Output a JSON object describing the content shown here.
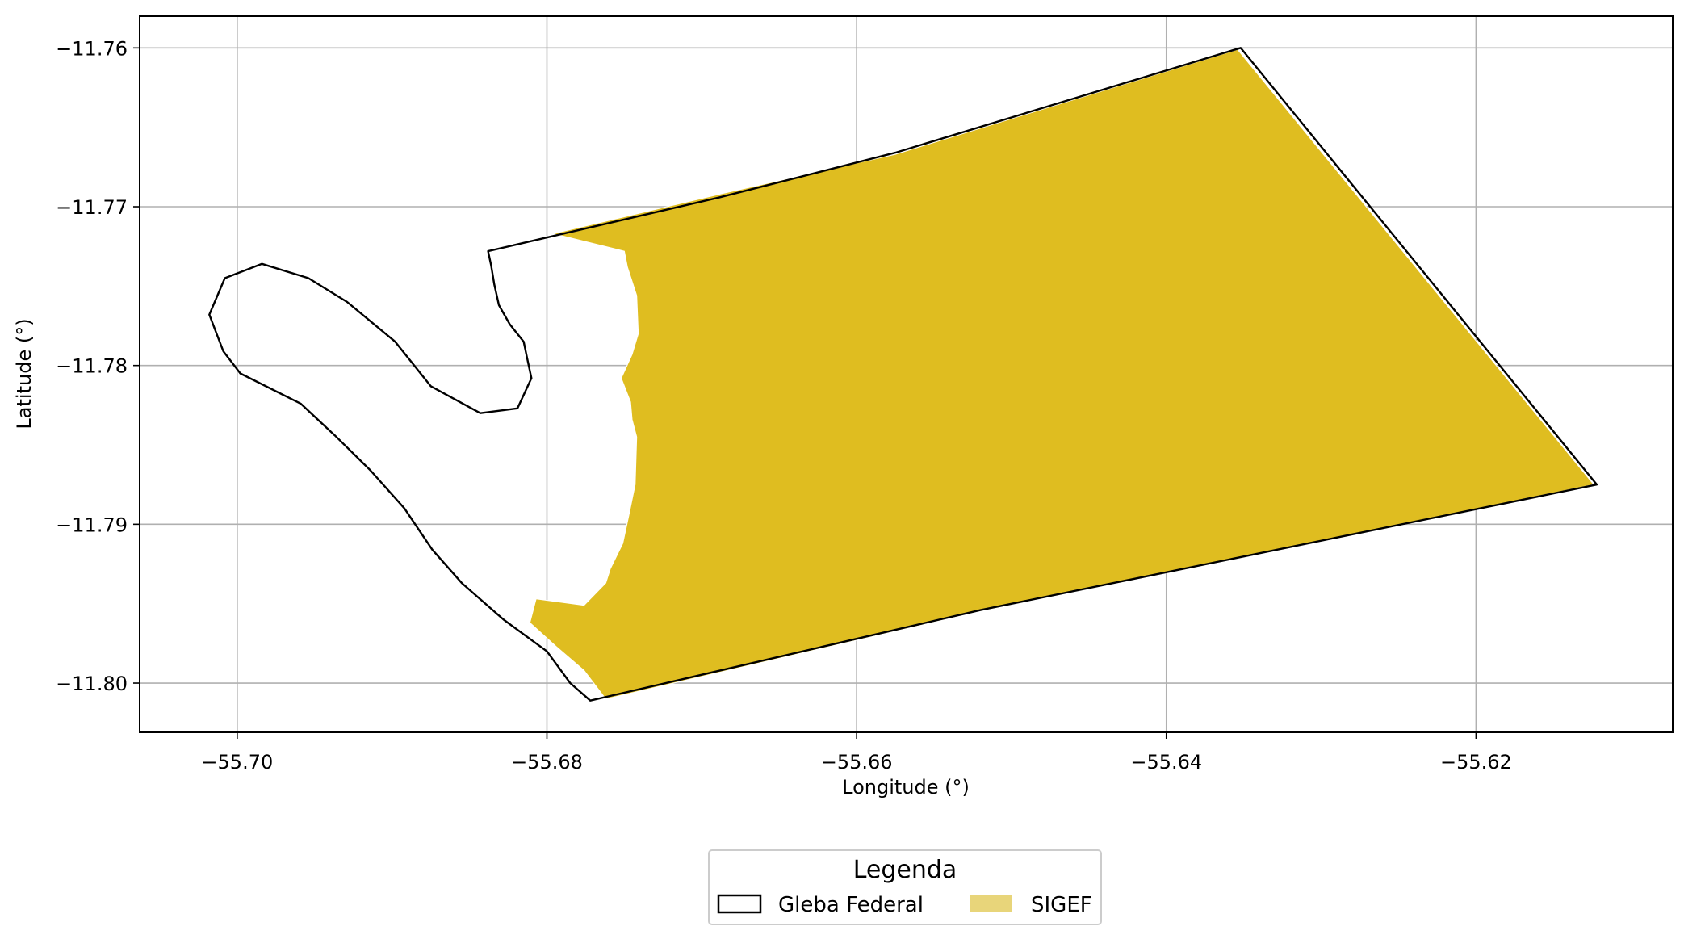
{
  "map": {
    "xlabel": "Longitude (°)",
    "ylabel": "Latitude (°)",
    "xlim": [
      -55.7063,
      -55.6073
    ],
    "ylim": [
      -11.8031,
      -11.758
    ],
    "grid": true,
    "x_ticks": [
      {
        "value": -55.7,
        "label": "−55.70"
      },
      {
        "value": -55.68,
        "label": "−55.68"
      },
      {
        "value": -55.66,
        "label": "−55.66"
      },
      {
        "value": -55.64,
        "label": "−55.64"
      },
      {
        "value": -55.62,
        "label": "−55.62"
      }
    ],
    "y_ticks": [
      {
        "value": -11.76,
        "label": "−11.76"
      },
      {
        "value": -11.77,
        "label": "−11.77"
      },
      {
        "value": -11.78,
        "label": "−11.78"
      },
      {
        "value": -11.79,
        "label": "−11.79"
      },
      {
        "value": -11.8,
        "label": "−11.80"
      }
    ],
    "legend": {
      "title": "Legenda",
      "placement": "bottom-center",
      "items": [
        {
          "label": "Gleba Federal",
          "style": "outline",
          "color": "#000000"
        },
        {
          "label": "SIGEF",
          "style": "fill",
          "color": "#e8d57a"
        }
      ]
    }
  },
  "chart_data": {
    "type": "map",
    "xlabel": "Longitude (°)",
    "ylabel": "Latitude (°)",
    "xlim": [
      -55.7063,
      -55.6073
    ],
    "ylim": [
      -11.8031,
      -11.758
    ],
    "series": [
      {
        "name": "Gleba Federal",
        "kind": "polygon-outline",
        "stroke": "#000000",
        "fill": "none",
        "coords": [
          [
            -55.6838,
            -11.7728
          ],
          [
            -55.6688,
            -11.7694
          ],
          [
            -55.6575,
            -11.7666
          ],
          [
            -55.6352,
            -11.76
          ],
          [
            -55.6122,
            -11.7875
          ],
          [
            -55.652,
            -11.7954
          ],
          [
            -55.6772,
            -11.8011
          ],
          [
            -55.6785,
            -11.8
          ],
          [
            -55.68,
            -11.798
          ],
          [
            -55.6828,
            -11.796
          ],
          [
            -55.6855,
            -11.7937
          ],
          [
            -55.6874,
            -11.7916
          ],
          [
            -55.6892,
            -11.789
          ],
          [
            -55.6914,
            -11.7866
          ],
          [
            -55.6937,
            -11.7844
          ],
          [
            -55.6959,
            -11.7824
          ],
          [
            -55.6998,
            -11.7805
          ],
          [
            -55.7009,
            -11.7791
          ],
          [
            -55.7018,
            -11.7768
          ],
          [
            -55.7008,
            -11.7745
          ],
          [
            -55.6984,
            -11.7736
          ],
          [
            -55.6954,
            -11.7745
          ],
          [
            -55.6929,
            -11.776
          ],
          [
            -55.6898,
            -11.7785
          ],
          [
            -55.6875,
            -11.7813
          ],
          [
            -55.6843,
            -11.783
          ],
          [
            -55.6819,
            -11.7827
          ],
          [
            -55.681,
            -11.7808
          ],
          [
            -55.6812,
            -11.7799
          ],
          [
            -55.6815,
            -11.7785
          ],
          [
            -55.6824,
            -11.7774
          ],
          [
            -55.6831,
            -11.7762
          ],
          [
            -55.6834,
            -11.7749
          ],
          [
            -55.6836,
            -11.7737
          ],
          [
            -55.6838,
            -11.7728
          ]
        ]
      },
      {
        "name": "SIGEF",
        "kind": "polygon-fill",
        "fill": "#dfbd20",
        "coords": [
          [
            -55.6796,
            -11.7717
          ],
          [
            -55.6688,
            -11.7692
          ],
          [
            -55.6575,
            -11.7667
          ],
          [
            -55.6354,
            -11.7601
          ],
          [
            -55.6124,
            -11.7875
          ],
          [
            -55.6521,
            -11.7955
          ],
          [
            -55.6762,
            -11.801
          ],
          [
            -55.6776,
            -11.7992
          ],
          [
            -55.6794,
            -11.7977
          ],
          [
            -55.6811,
            -11.7962
          ],
          [
            -55.6807,
            -11.7947
          ],
          [
            -55.6776,
            -11.7951
          ],
          [
            -55.6762,
            -11.7937
          ],
          [
            -55.6759,
            -11.7928
          ],
          [
            -55.6751,
            -11.7912
          ],
          [
            -55.6747,
            -11.7894
          ],
          [
            -55.6743,
            -11.7875
          ],
          [
            -55.6742,
            -11.7845
          ],
          [
            -55.6745,
            -11.7834
          ],
          [
            -55.6746,
            -11.7823
          ],
          [
            -55.6752,
            -11.7808
          ],
          [
            -55.6745,
            -11.7793
          ],
          [
            -55.6741,
            -11.778
          ],
          [
            -55.6742,
            -11.7756
          ],
          [
            -55.6748,
            -11.7738
          ],
          [
            -55.675,
            -11.7728
          ],
          [
            -55.6796,
            -11.7717
          ]
        ]
      }
    ]
  }
}
